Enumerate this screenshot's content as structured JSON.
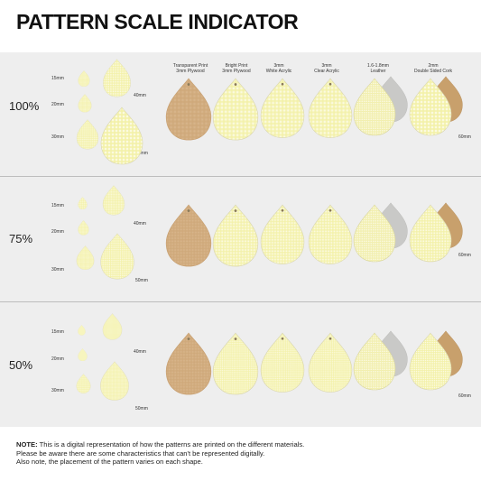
{
  "title": "PATTERN SCALE INDICATOR",
  "rows": [
    {
      "label": "100%"
    },
    {
      "label": "75%"
    },
    {
      "label": "50%"
    }
  ],
  "sizes": {
    "s15": "15mm",
    "s20": "20mm",
    "s30": "30mm",
    "s40": "40mm",
    "s50": "50mm",
    "s60": "60mm"
  },
  "materials": [
    {
      "line1": "Transparent Print",
      "line2": "3mm Plywood"
    },
    {
      "line1": "Bright Print",
      "line2": "3mm Plywood"
    },
    {
      "line1": "3mm",
      "line2": "White Acrylic"
    },
    {
      "line1": "3mm",
      "line2": "Clear Acrylic"
    },
    {
      "line1": "1.6-1.8mm",
      "line2": "Leather"
    },
    {
      "line1": "2mm",
      "line2": "Double Sided Cork"
    }
  ],
  "note": {
    "label": "NOTE:",
    "line1": "This is a digital representation of how the patterns are printed on the different materials.",
    "line2": "Please be aware there are some characteristics that can't be represented digitally.",
    "line3": "Also note, the placement of the pattern varies on each shape."
  },
  "colors": {
    "gingham": "#f5f3b5",
    "plywood": "#d6b286",
    "leatherBack": "#c9c9c7",
    "corkBack": "#c8a06c",
    "band": "#eeeeee"
  }
}
